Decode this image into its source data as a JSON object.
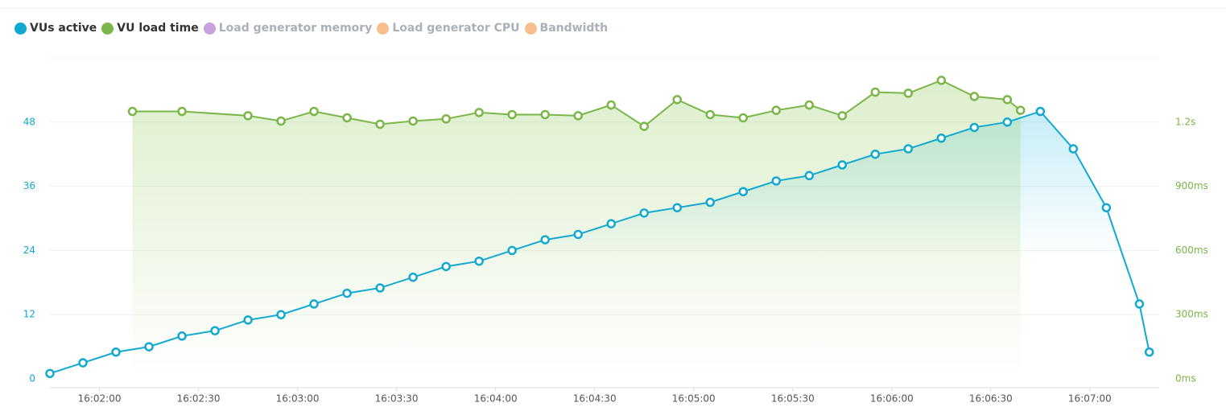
{
  "chart_data": {
    "type": "line",
    "xlim": [
      "16:01:45",
      "16:07:21"
    ],
    "xticks": [
      "16:02:00",
      "16:02:30",
      "16:03:00",
      "16:03:30",
      "16:04:00",
      "16:04:30",
      "16:05:00",
      "16:05:30",
      "16:06:00",
      "16:06:30",
      "16:07:00"
    ],
    "ylim": [
      0,
      60
    ],
    "yticks": [
      0,
      12,
      24,
      36,
      48
    ],
    "y2lim": [
      0,
      1500
    ],
    "y2ticks": [
      {
        "value": 0,
        "label": "0ms"
      },
      {
        "value": 300,
        "label": "300ms"
      },
      {
        "value": 600,
        "label": "600ms"
      },
      {
        "value": 900,
        "label": "900ms"
      },
      {
        "value": 1200,
        "label": "1.2s"
      }
    ],
    "grid": true,
    "legend": "top-left",
    "series": [
      {
        "name": "VUs active",
        "color": "#12a9d1",
        "x": [
          "16:01:45",
          "16:01:55",
          "16:02:05",
          "16:02:15",
          "16:02:25",
          "16:02:35",
          "16:02:45",
          "16:02:55",
          "16:03:05",
          "16:03:15",
          "16:03:25",
          "16:03:35",
          "16:03:45",
          "16:03:55",
          "16:04:05",
          "16:04:15",
          "16:04:25",
          "16:04:35",
          "16:04:45",
          "16:04:55",
          "16:05:05",
          "16:05:15",
          "16:05:25",
          "16:05:35",
          "16:05:45",
          "16:05:55",
          "16:06:05",
          "16:06:15",
          "16:06:25",
          "16:06:35",
          "16:06:45",
          "16:06:55",
          "16:07:05",
          "16:07:15",
          "16:07:18"
        ],
        "values": [
          1,
          3,
          5,
          6,
          8,
          9,
          11,
          12,
          14,
          16,
          17,
          19,
          21,
          22,
          24,
          26,
          27,
          29,
          31,
          32,
          33,
          35,
          37,
          38,
          40,
          42,
          43,
          45,
          47,
          48,
          50,
          43,
          32,
          14,
          5
        ]
      },
      {
        "name": "VU load time",
        "color": "#7ab648",
        "axis": "y2",
        "x": [
          "16:02:10",
          "16:02:25",
          "16:02:45",
          "16:02:55",
          "16:03:05",
          "16:03:15",
          "16:03:25",
          "16:03:35",
          "16:03:45",
          "16:03:55",
          "16:04:05",
          "16:04:15",
          "16:04:25",
          "16:04:35",
          "16:04:45",
          "16:04:55",
          "16:05:05",
          "16:05:15",
          "16:05:25",
          "16:05:35",
          "16:05:45",
          "16:05:55",
          "16:06:05",
          "16:06:15",
          "16:06:25",
          "16:06:35",
          "16:06:39"
        ],
        "values": [
          1250,
          1250,
          1230,
          1205,
          1250,
          1220,
          1190,
          1205,
          1215,
          1245,
          1235,
          1235,
          1230,
          1280,
          1180,
          1305,
          1235,
          1220,
          1255,
          1280,
          1230,
          1340,
          1335,
          1395,
          1320,
          1305,
          1255
        ]
      },
      {
        "name": "Load generator memory",
        "color": "#c9a0de",
        "hidden": true
      },
      {
        "name": "Load generator CPU",
        "color": "#f7bf8c",
        "hidden": true
      },
      {
        "name": "Bandwidth",
        "color": "#f7bf8c",
        "hidden": true
      }
    ]
  }
}
